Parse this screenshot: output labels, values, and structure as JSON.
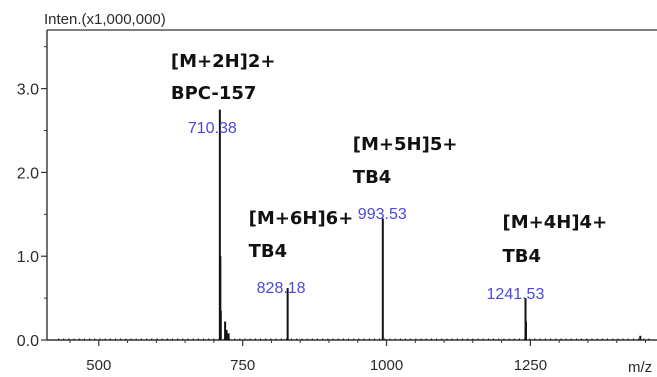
{
  "chart_data": {
    "type": "line",
    "subtype": "mass-spectrum",
    "ylabel": "Inten.(x1,000,000)",
    "xlabel": "m/z",
    "xlim": [
      410,
      1470
    ],
    "ylim": [
      0,
      3.7
    ],
    "x_ticks": [
      500,
      750,
      1000,
      1250
    ],
    "x_tick_labels": [
      "500",
      "750",
      "1000",
      "1250"
    ],
    "y_ticks": [
      0.0,
      1.0,
      2.0,
      3.0
    ],
    "y_tick_labels": [
      "0.0",
      "1.0",
      "2.0",
      "3.0"
    ],
    "grid": false,
    "peaks": [
      {
        "x": 710.38,
        "y": 2.75
      },
      {
        "x": 711.2,
        "y": 1.0
      },
      {
        "x": 712.0,
        "y": 0.35
      },
      {
        "x": 719.5,
        "y": 0.22
      },
      {
        "x": 722.0,
        "y": 0.12
      },
      {
        "x": 725.5,
        "y": 0.08
      },
      {
        "x": 828.18,
        "y": 0.62
      },
      {
        "x": 993.53,
        "y": 1.45
      },
      {
        "x": 1241.53,
        "y": 0.5
      },
      {
        "x": 1242.3,
        "y": 0.22
      },
      {
        "x": 1441.0,
        "y": 0.05
      }
    ],
    "annotations": [
      {
        "ion": "[M+2H]2+",
        "compound": "BPC-157",
        "mz_label": "710.38",
        "x": 710.38
      },
      {
        "ion": "[M+6H]6+",
        "compound": "TB4",
        "mz_label": "828.18",
        "x": 828.18
      },
      {
        "ion": "[M+5H]5+",
        "compound": "TB4",
        "mz_label": "993.53",
        "x": 993.53
      },
      {
        "ion": "[M+4H]4+",
        "compound": "TB4",
        "mz_label": "1241.53",
        "x": 1241.53
      }
    ]
  }
}
